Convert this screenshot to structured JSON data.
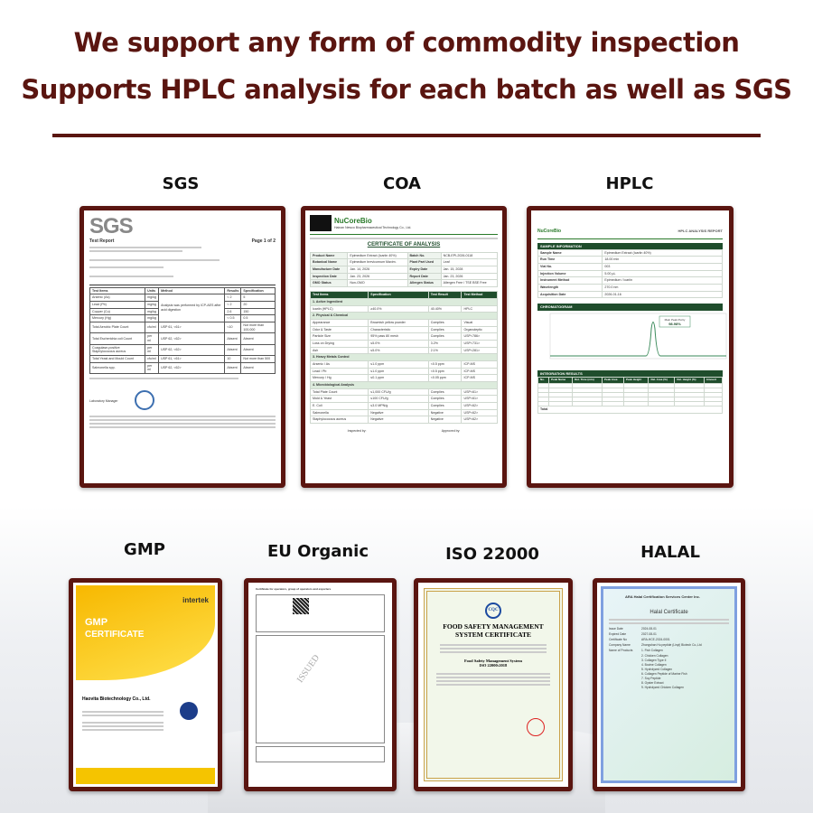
{
  "header": {
    "line1": "We support any form of commodity inspection",
    "line2": "Supports HPLC analysis for each batch as well as SGS"
  },
  "colors": {
    "accent": "#5a1510",
    "green": "#1f4d2c",
    "gmp_yellow": "#f5c400"
  },
  "row1": [
    {
      "label": "SGS"
    },
    {
      "label": "COA"
    },
    {
      "label": "HPLC"
    }
  ],
  "row2": [
    {
      "label": "GMP"
    },
    {
      "label": "EU Organic"
    },
    {
      "label": "ISO 22000"
    },
    {
      "label": "HALAL"
    }
  ],
  "sgs": {
    "logo": "SGS",
    "title": "Test Report",
    "page": "Page 1 of 2",
    "headers": [
      "Test Items",
      "Units",
      "Method",
      "Results",
      "Specification"
    ],
    "rows": [
      [
        "Arsenic (As)",
        "mg/kg",
        "",
        "< 2",
        "5"
      ],
      [
        "Lead (Pb)",
        "mg/kg",
        "",
        "< 2",
        "20"
      ],
      [
        "Copper (Cu)",
        "mg/kg",
        "",
        "2.6",
        "150"
      ],
      [
        "Mercury (Hg)",
        "mg/kg",
        "",
        "< 0.5",
        "0.5"
      ],
      [
        "Total Aerobic Plate Count",
        "cfu/ml",
        "USP 61, <61>",
        "<10",
        "Not more than 100,000"
      ],
      [
        "Total Escherichia coli Count",
        "per ml",
        "USP 62, <62>",
        "Absent",
        "Absent"
      ],
      [
        "Coagulase-positive Staphylococcus aureus",
        "per ml",
        "USP 62, <62>",
        "Absent",
        "Absent"
      ],
      [
        "Total Yeast and Mould Count",
        "cfu/ml",
        "USP 61, <61>",
        "10",
        "Not more than 500"
      ],
      [
        "Salmonella spp.",
        "per ml",
        "USP 62, <62>",
        "Absent",
        "Absent"
      ]
    ],
    "method_note": "Analysis was performed by ICP-AES after acid digestion",
    "signer": "Laboratory Manager"
  },
  "coa": {
    "brand": "NuCoreBio",
    "company": "Hainan Newco Biopharmaceutical Technology Co., Ltd.",
    "title": "CERTIFICATE OF ANALYSIS",
    "info": [
      [
        "Product Name",
        "Epimedium Extract (Icariin 40%)",
        "Batch No.",
        "NCB-EPI-2026-0118"
      ],
      [
        "Botanical Name",
        "Epimedium brevicornum Maxim.",
        "Plant Part Used",
        "Leaf"
      ],
      [
        "Manufacture Date",
        "Jan. 14, 2026",
        "Expiry Date",
        "Jan. 15, 2028"
      ],
      [
        "Inspection Date",
        "Jan. 23, 2026",
        "Report Date",
        "Jan. 23, 2026"
      ],
      [
        "GMO Status",
        "Non-GMO",
        "Allergen Status",
        "Allergen Free / TSE BSE Free"
      ]
    ],
    "headers": [
      "Test Items",
      "Specification",
      "Test Result",
      "Test Method"
    ],
    "sections": [
      {
        "name": "1. Active Ingredient",
        "rows": [
          [
            "Icariin (HPLC)",
            "≥40.0%",
            "40.40%",
            "HPLC"
          ]
        ]
      },
      {
        "name": "2. Physical & Chemical",
        "rows": [
          [
            "Appearance",
            "Brownish yellow powder",
            "Complies",
            "Visual"
          ],
          [
            "Odor & Taste",
            "Characteristic",
            "Complies",
            "Organoleptic"
          ],
          [
            "Particle Size",
            "95% pass 80 mesh",
            "Complies",
            "USP<786>"
          ],
          [
            "Loss on Drying",
            "≤5.0%",
            "3.2%",
            "USP<731>"
          ],
          [
            "Ash",
            "≤5.0%",
            "2.1%",
            "USP<281>"
          ]
        ]
      },
      {
        "name": "3. Heavy Metals Control",
        "rows": [
          [
            "Arsenic / As",
            "≤1.0 ppm",
            "<0.5 ppm",
            "ICP-MS"
          ],
          [
            "Lead / Pb",
            "≤1.0 ppm",
            "<0.5 ppm",
            "ICP-MS"
          ],
          [
            "Mercury / Hg",
            "≤0.1 ppm",
            "<0.05 ppm",
            "ICP-MS"
          ]
        ]
      },
      {
        "name": "4. Microbiological Analysis",
        "rows": [
          [
            "Total Plate Count",
            "≤1,000 CFU/g",
            "Complies",
            "USP<61>"
          ],
          [
            "Mold & Yeast",
            "≤100 CFU/g",
            "Complies",
            "USP<61>"
          ],
          [
            "E. Coli",
            "≤3.0 MPN/g",
            "Complies",
            "USP<62>"
          ],
          [
            "Salmonella",
            "Negative",
            "Negative",
            "USP<62>"
          ],
          [
            "Staphylococcus aureus",
            "Negative",
            "Negative",
            "USP<62>"
          ]
        ]
      }
    ],
    "inspected_by": "Inspected by:",
    "approved_by": "Approved by:"
  },
  "hplc": {
    "brand": "NuCoreBio",
    "title": "HPLC ANALYSIS REPORT",
    "sample_header": "SAMPLE INFORMATION",
    "sample": [
      [
        "Sample Name",
        "Epimedium Extract (Icariin 40%)"
      ],
      [
        "Run Time",
        "18.00 min"
      ],
      [
        "Vial No.",
        "003"
      ],
      [
        "Injection Volume",
        "5.00 µL"
      ],
      [
        "Instrument Method",
        "Epimedium / Icariin"
      ],
      [
        "Wavelength",
        "270.0 nm"
      ],
      [
        "Acquisition Date",
        "2026-01-16"
      ]
    ],
    "chrom_header": "CHROMATOGRAM",
    "peak_label": "Main Peak Purity",
    "peak_value": "98.98%",
    "int_header": "INTEGRATION RESULTS",
    "int_cols": [
      "No.",
      "Peak Name",
      "Ret. Time (min)",
      "Peak Area",
      "Peak Height",
      "Rel. Area (%)",
      "Rel. Height (%)",
      "Amount"
    ],
    "total_label": "Total"
  },
  "gmp": {
    "brand": "intertek",
    "title1": "GMP",
    "title2": "CERTIFICATE",
    "company": "Haovita Biotechnology Co., Ltd."
  },
  "iso": {
    "logo": "CQC",
    "title1": "FOOD SAFETY MANAGEMENT",
    "title2": "SYSTEM CERTIFICATE",
    "std": "ISO 22000:2018",
    "system": "Food Safety Management System"
  },
  "halal": {
    "org": "ARA Halal Certification Services Center Inc.",
    "title": "Halal Certificate",
    "fields": [
      [
        "Issue Date",
        "2024-08-01"
      ],
      [
        "Expired Date",
        "2027-08-01"
      ],
      [
        "Certificate No",
        "ARA-HCE-2024-0001"
      ],
      [
        "Company Name",
        "Zhongshan Hu peptide (Linyi) Biotech Co.,Ltd"
      ],
      [
        "Name of Products",
        "1. Fish Collagen"
      ]
    ],
    "products": [
      "2. Chicken Collagen",
      "3. Collagen Type II",
      "4. Bovine Collagen",
      "5. Hydrolyzed Collagen",
      "6. Collagen Peptide of Marine Fish",
      "7. Soy Peptide",
      "8. Oyster Extract",
      "9. Hydrolyzed Chicken Collagen"
    ]
  },
  "eu": {
    "heading": "Certificate for operators, group of operators and exporters",
    "stamp": "ISSUED"
  }
}
